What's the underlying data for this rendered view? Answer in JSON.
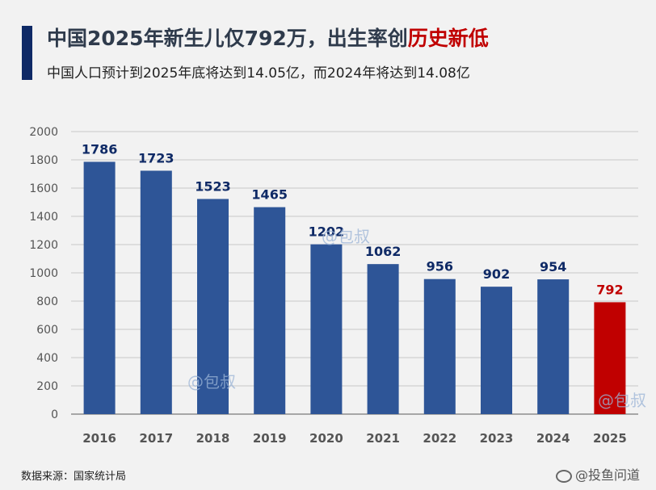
{
  "header": {
    "title_main": "中国2025年新生儿仅792万，出生率创",
    "title_highlight": "历史新低",
    "subtitle": "中国人口预计到2025年底将达到14.05亿，而2024年将达到14.08亿"
  },
  "footer": {
    "source": "数据来源：国家统计局",
    "credit": "@投鱼问道"
  },
  "watermarks": [
    "@包叔",
    "@包叔",
    "@包叔"
  ],
  "colors": {
    "bar": "#2e5597",
    "highlight_bar": "#c00000",
    "label": "#0f2a66",
    "highlight_label": "#c00000",
    "grid": "#c8c8c8"
  },
  "chart_data": {
    "type": "bar",
    "categories": [
      "2016",
      "2017",
      "2018",
      "2019",
      "2020",
      "2021",
      "2022",
      "2023",
      "2024",
      "2025"
    ],
    "values": [
      1786,
      1723,
      1523,
      1465,
      1202,
      1062,
      956,
      902,
      954,
      792
    ],
    "highlight_category": "2025",
    "ylim": [
      0,
      2000
    ],
    "yticks": [
      0,
      200,
      400,
      600,
      800,
      1000,
      1200,
      1400,
      1600,
      1800,
      2000
    ],
    "grid": true,
    "legend": "none",
    "title": "",
    "xlabel": "",
    "ylabel": ""
  }
}
